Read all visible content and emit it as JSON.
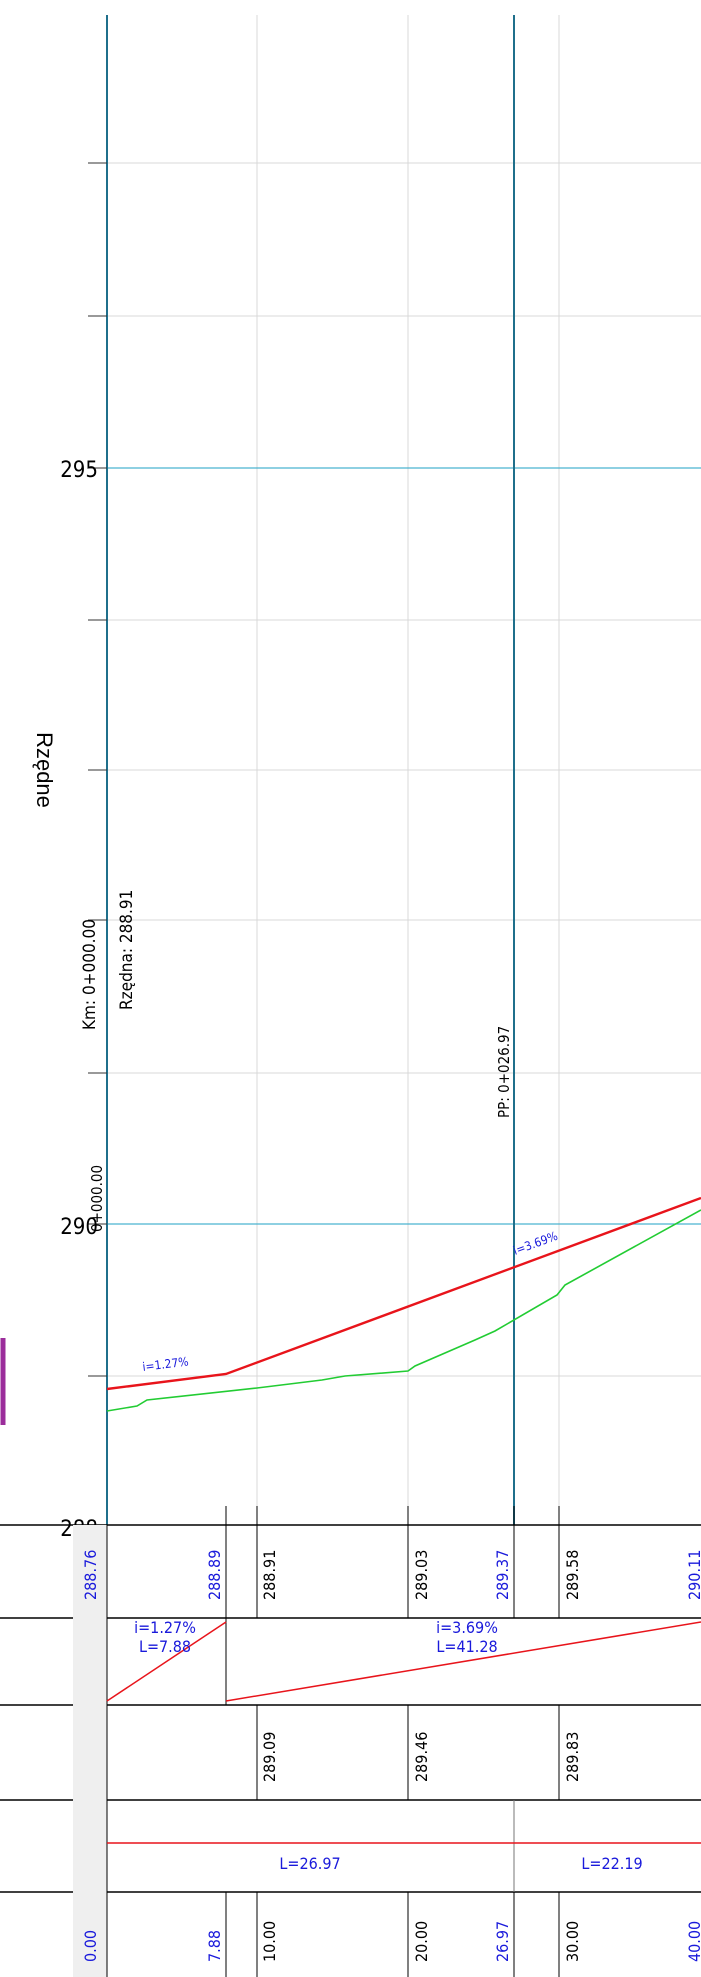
{
  "axis": {
    "title": "Rzędne",
    "tick_labels": [
      "295",
      "290",
      "288"
    ]
  },
  "labels": {
    "start_km": "Km: 0+000.00",
    "start_elev": "Rzędna: 288.91",
    "start_station": "0+000.00",
    "pp_station": "PP: 0+026.97",
    "grade1_plot": "i=1.27%",
    "grade2_plot": "i=3.69%"
  },
  "table": {
    "row1_values": [
      "288.76",
      "288.89",
      "288.91",
      "289.03",
      "289.37",
      "289.58",
      "290.11"
    ],
    "row2_grade1": "i=1.27%",
    "row2_len1": "L=7.88",
    "row2_grade2": "i=3.69%",
    "row2_len2": "L=41.28",
    "row3_values": [
      "289.09",
      "289.46",
      "289.83"
    ],
    "row4_len1": "L=26.97",
    "row4_len2": "L=22.19",
    "row5_values": [
      "0.00",
      "7.88",
      "10.00",
      "20.00",
      "26.97",
      "30.00",
      "40.00"
    ]
  },
  "colors": {
    "design_line": "#e8141b",
    "terrain_line": "#22cc33",
    "vertical_marker": "#1f6f8b",
    "major_grid": "#4ab3d0",
    "minor_grid": "#d9d9d9",
    "blue_text": "#1a1adb",
    "legend_mark": "#9b2d9b"
  },
  "chart_data": {
    "type": "line",
    "ylabel": "Rzędne",
    "ylim": [
      288,
      297
    ],
    "xlim": [
      0,
      40
    ],
    "series": [
      {
        "x": [
          0,
          7.88,
          40.0
        ],
        "y": [
          288.76,
          288.86,
          290.11
        ]
      },
      {
        "x": [
          0,
          2,
          2.6,
          10,
          14,
          16,
          20,
          20.5,
          25,
          26.3,
          29.5,
          30,
          40
        ],
        "y": [
          288.72,
          288.77,
          288.81,
          288.86,
          288.91,
          288.93,
          288.96,
          289.0,
          289.25,
          289.37,
          289.58,
          289.72,
          290.11
        ]
      }
    ],
    "vertical_markers": [
      0,
      26.97
    ],
    "major_grid_y": [
      290,
      295
    ],
    "tick_labels": [
      "295",
      "290",
      "288"
    ]
  }
}
